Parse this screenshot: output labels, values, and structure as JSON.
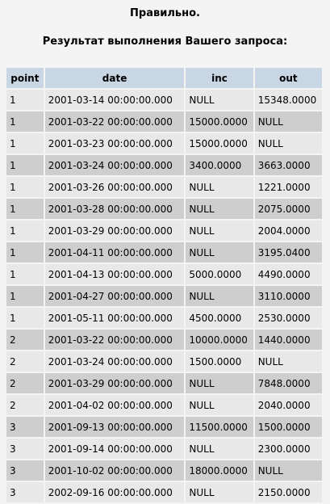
{
  "status_text": "Правильно.",
  "result_title": "Результат выполнения Вашего запроса:",
  "table": {
    "columns": [
      "point",
      "date",
      "inc",
      "out"
    ],
    "rows": [
      [
        "1",
        "2001-03-14 00:00:00.000",
        "NULL",
        "15348.0000"
      ],
      [
        "1",
        "2001-03-22 00:00:00.000",
        "15000.0000",
        "NULL"
      ],
      [
        "1",
        "2001-03-23 00:00:00.000",
        "15000.0000",
        "NULL"
      ],
      [
        "1",
        "2001-03-24 00:00:00.000",
        "3400.0000",
        "3663.0000"
      ],
      [
        "1",
        "2001-03-26 00:00:00.000",
        "NULL",
        "1221.0000"
      ],
      [
        "1",
        "2001-03-28 00:00:00.000",
        "NULL",
        "2075.0000"
      ],
      [
        "1",
        "2001-03-29 00:00:00.000",
        "NULL",
        "2004.0000"
      ],
      [
        "1",
        "2001-04-11 00:00:00.000",
        "NULL",
        "3195.0400"
      ],
      [
        "1",
        "2001-04-13 00:00:00.000",
        "5000.0000",
        "4490.0000"
      ],
      [
        "1",
        "2001-04-27 00:00:00.000",
        "NULL",
        "3110.0000"
      ],
      [
        "1",
        "2001-05-11 00:00:00.000",
        "4500.0000",
        "2530.0000"
      ],
      [
        "2",
        "2001-03-22 00:00:00.000",
        "10000.0000",
        "1440.0000"
      ],
      [
        "2",
        "2001-03-24 00:00:00.000",
        "1500.0000",
        "NULL"
      ],
      [
        "2",
        "2001-03-29 00:00:00.000",
        "NULL",
        "7848.0000"
      ],
      [
        "2",
        "2001-04-02 00:00:00.000",
        "NULL",
        "2040.0000"
      ],
      [
        "3",
        "2001-09-13 00:00:00.000",
        "11500.0000",
        "1500.0000"
      ],
      [
        "3",
        "2001-09-14 00:00:00.000",
        "NULL",
        "2300.0000"
      ],
      [
        "3",
        "2001-10-02 00:00:00.000",
        "18000.0000",
        "NULL"
      ],
      [
        "3",
        "2002-09-16 00:00:00.000",
        "NULL",
        "2150.0000"
      ]
    ]
  }
}
